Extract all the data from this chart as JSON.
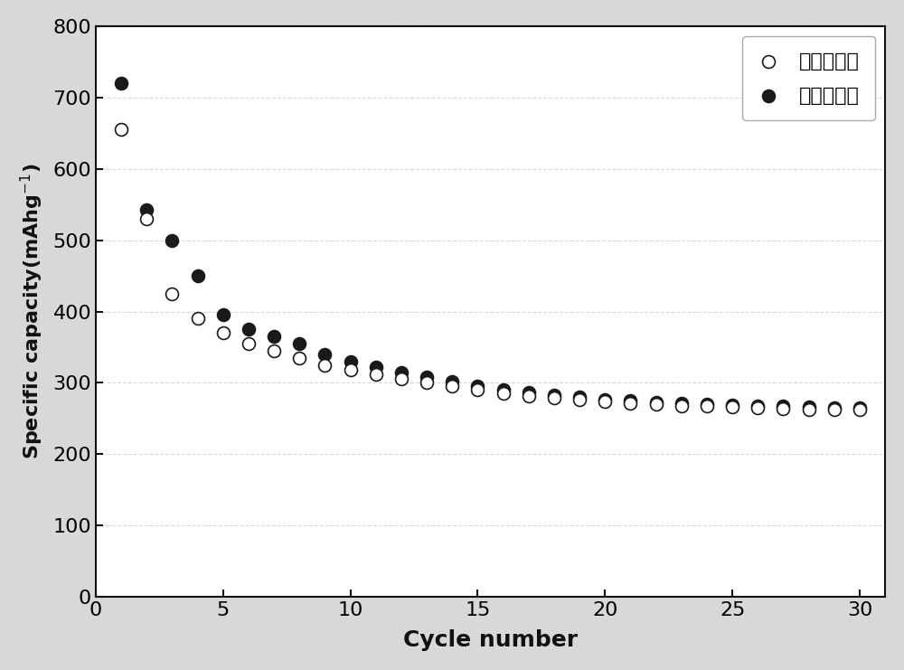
{
  "charge_x": [
    1,
    2,
    3,
    4,
    5,
    6,
    7,
    8,
    9,
    10,
    11,
    12,
    13,
    14,
    15,
    16,
    17,
    18,
    19,
    20,
    21,
    22,
    23,
    24,
    25,
    26,
    27,
    28,
    29,
    30
  ],
  "charge_y": [
    655,
    530,
    425,
    390,
    370,
    355,
    345,
    335,
    325,
    318,
    312,
    306,
    300,
    295,
    290,
    285,
    282,
    279,
    276,
    274,
    272,
    270,
    268,
    267,
    266,
    265,
    264,
    263,
    262,
    262
  ],
  "discharge_x": [
    1,
    2,
    3,
    4,
    5,
    6,
    7,
    8,
    9,
    10,
    11,
    12,
    13,
    14,
    15,
    16,
    17,
    18,
    19,
    20,
    21,
    22,
    23,
    24,
    25,
    26,
    27,
    28,
    29,
    30
  ],
  "discharge_y": [
    720,
    543,
    500,
    450,
    395,
    375,
    365,
    355,
    340,
    330,
    322,
    315,
    308,
    302,
    296,
    291,
    287,
    283,
    280,
    277,
    275,
    273,
    271,
    270,
    269,
    268,
    267,
    266,
    265,
    265
  ],
  "xlabel": "Cycle number",
  "ylim": [
    0,
    800
  ],
  "xlim": [
    0,
    31
  ],
  "yticks": [
    0,
    100,
    200,
    300,
    400,
    500,
    600,
    700,
    800
  ],
  "xticks": [
    0,
    5,
    10,
    15,
    20,
    25,
    30
  ],
  "legend_charge": "充电比容量",
  "legend_discharge": "放电比容量",
  "bg_color": "#d8d8d8",
  "plot_bg_color": "#ffffff",
  "marker_size": 100,
  "charge_face": "#ffffff",
  "charge_edge": "#1a1a1a",
  "discharge_face": "#1a1a1a",
  "discharge_edge": "#1a1a1a",
  "edge_linewidth": 1.2,
  "spine_linewidth": 1.5,
  "tick_labelsize": 16,
  "xlabel_fontsize": 18,
  "ylabel_fontsize": 16,
  "legend_fontsize": 16,
  "grid_color": "#c0c0c0",
  "grid_alpha": 0.6,
  "grid_linestyle": "--",
  "grid_linewidth": 0.8
}
